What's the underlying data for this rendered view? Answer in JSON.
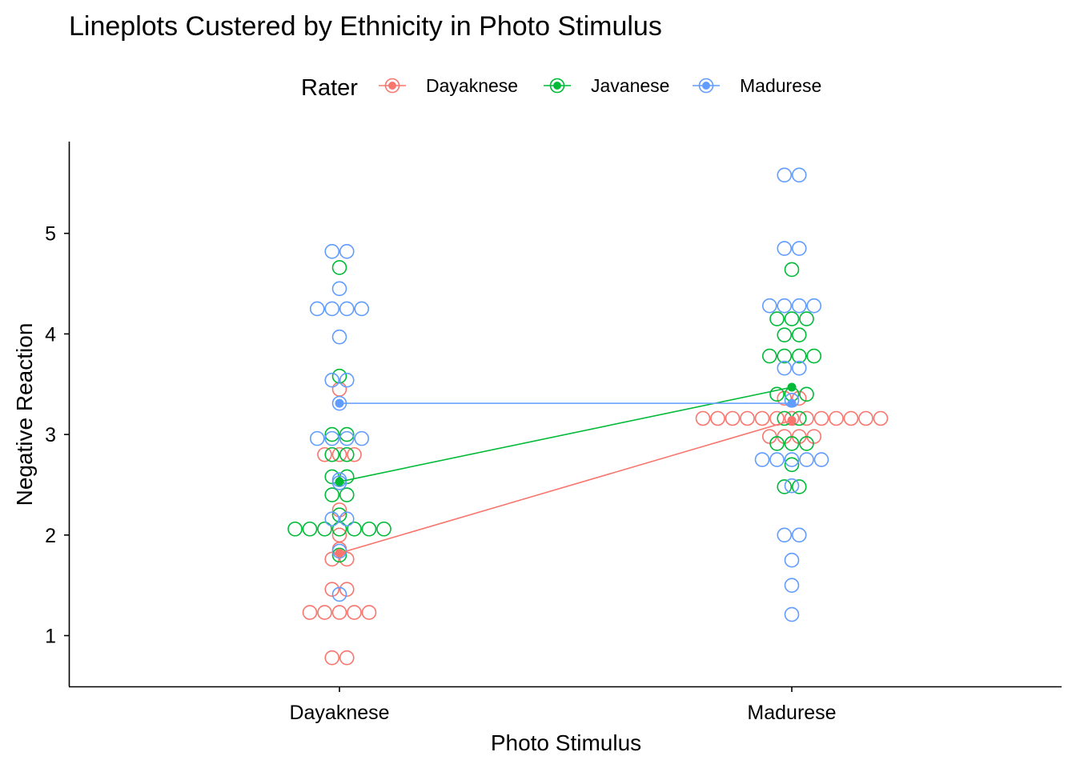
{
  "chart_data": {
    "type": "dotplot-line",
    "title": "Lineplots Custered by Ethnicity in Photo Stimulus",
    "xlabel": "Photo Stimulus",
    "ylabel": "Negative Reaction",
    "legend": {
      "title": "Rater",
      "position": "top"
    },
    "categories": [
      "Dayaknese",
      "Madurese"
    ],
    "y_ticks": [
      1,
      2,
      3,
      4,
      5
    ],
    "ylim": [
      0.5,
      5.95
    ],
    "series": [
      {
        "name": "Dayaknese",
        "color": "#F8766D",
        "means": [
          1.82,
          3.14
        ],
        "points": [
          [
            0.78,
            0.78,
            1.23,
            1.23,
            1.23,
            1.23,
            1.23,
            1.46,
            1.46,
            1.76,
            1.76,
            1.86,
            2.0,
            2.25,
            2.8,
            2.8,
            2.8,
            3.45
          ],
          [
            2.98,
            2.98,
            2.98,
            2.98,
            3.16,
            3.16,
            3.16,
            3.16,
            3.16,
            3.16,
            3.16,
            3.16,
            3.16,
            3.16,
            3.16,
            3.16,
            3.16,
            3.36,
            3.36
          ]
        ]
      },
      {
        "name": "Javanese",
        "color": "#00BA38",
        "means": [
          2.53,
          3.47
        ],
        "points": [
          [
            1.8,
            2.06,
            2.06,
            2.06,
            2.06,
            2.06,
            2.06,
            2.06,
            2.2,
            2.4,
            2.4,
            2.58,
            2.58,
            2.8,
            2.8,
            3.0,
            3.0,
            3.58,
            4.66
          ],
          [
            2.48,
            2.48,
            2.7,
            2.91,
            2.91,
            2.91,
            3.16,
            3.16,
            3.4,
            3.4,
            3.4,
            3.78,
            3.78,
            3.78,
            3.78,
            3.99,
            3.99,
            4.15,
            4.15,
            4.15,
            4.64
          ]
        ]
      },
      {
        "name": "Madurese",
        "color": "#619CFF",
        "means": [
          3.31,
          3.31
        ],
        "points": [
          [
            1.41,
            1.84,
            2.16,
            2.16,
            2.52,
            2.55,
            2.96,
            2.96,
            2.96,
            2.96,
            3.31,
            3.54,
            3.54,
            3.97,
            4.25,
            4.25,
            4.25,
            4.25,
            4.45,
            4.82,
            4.82
          ],
          [
            1.21,
            1.5,
            1.75,
            2.0,
            2.0,
            2.49,
            2.75,
            2.75,
            2.75,
            2.75,
            2.75,
            3.34,
            3.66,
            3.66,
            4.28,
            4.28,
            4.28,
            4.28,
            4.85,
            4.85,
            5.58,
            5.58
          ]
        ]
      }
    ]
  }
}
